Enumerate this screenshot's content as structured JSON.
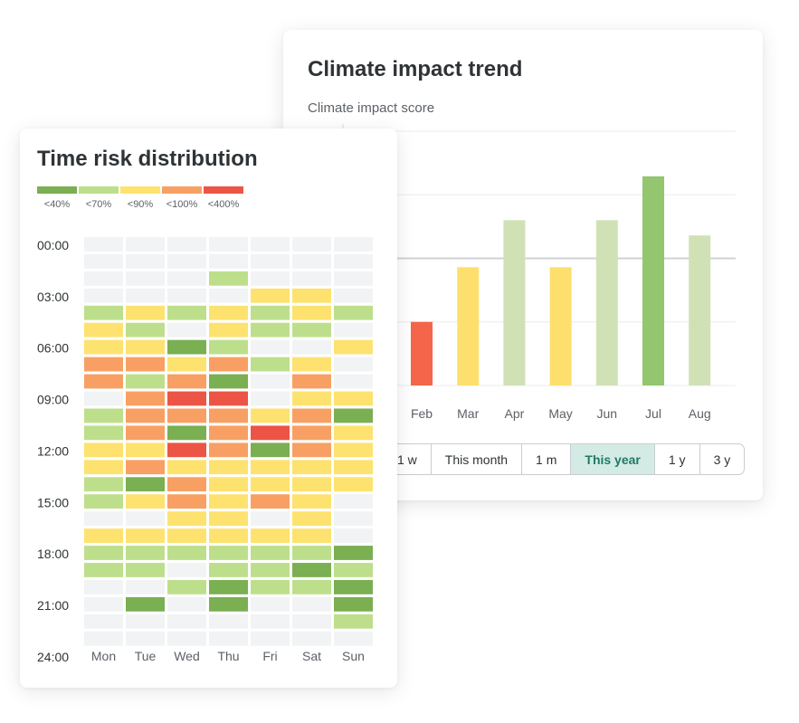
{
  "trend_card": {
    "title": "Climate impact trend",
    "score_label": "Climate impact score",
    "range_tabs": [
      {
        "label": "1 w",
        "active": false
      },
      {
        "label": "This month",
        "active": false
      },
      {
        "label": "1 m",
        "active": false
      },
      {
        "label": "This year",
        "active": true
      },
      {
        "label": "1 y",
        "active": false
      },
      {
        "label": "3 y",
        "active": false
      }
    ]
  },
  "risk_card": {
    "title": "Time risk distribution",
    "legend": [
      {
        "label": "<40%",
        "color": "#7aaf52"
      },
      {
        "label": "<70%",
        "color": "#bddf8c"
      },
      {
        "label": "<90%",
        "color": "#fde26f"
      },
      {
        "label": "<100%",
        "color": "#f8a063"
      },
      {
        "label": "<400%",
        "color": "#ec5446"
      }
    ]
  },
  "chart_data": [
    {
      "type": "bar",
      "title": "Climate impact trend",
      "ylabel": "Climate impact score",
      "categories": [
        "Feb",
        "Mar",
        "Apr",
        "May",
        "Jun",
        "Jul",
        "Aug"
      ],
      "values": [
        1.0,
        1.86,
        2.6,
        1.86,
        2.6,
        3.29,
        2.36
      ],
      "colors": [
        "#f4654a",
        "#fddf6d",
        "#d1e1b6",
        "#fddf6d",
        "#d1e1b6",
        "#94c56f",
        "#d1e1b6"
      ],
      "ylim": [
        0,
        4
      ],
      "reference_line": 2,
      "grid": true
    },
    {
      "type": "heatmap",
      "title": "Time risk distribution",
      "x_categories": [
        "Mon",
        "Tue",
        "Wed",
        "Thu",
        "Fri",
        "Sat",
        "Sun"
      ],
      "y_tick_labels": [
        "00:00",
        "03:00",
        "06:00",
        "09:00",
        "12:00",
        "15:00",
        "18:00",
        "21:00",
        "24:00"
      ],
      "y_rows": 24,
      "levels": [
        "none",
        "<40%",
        "<70%",
        "<90%",
        "<100%",
        "<400%"
      ],
      "level_colors": [
        "#f1f3f4",
        "#7aaf52",
        "#bddf8c",
        "#fde26f",
        "#f8a063",
        "#ec5446"
      ],
      "values": [
        [
          0,
          0,
          0,
          0,
          0,
          0,
          0
        ],
        [
          0,
          0,
          0,
          0,
          0,
          0,
          0
        ],
        [
          0,
          0,
          0,
          2,
          0,
          0,
          0
        ],
        [
          0,
          0,
          0,
          0,
          3,
          3,
          0
        ],
        [
          2,
          3,
          2,
          3,
          2,
          3,
          2
        ],
        [
          3,
          2,
          0,
          3,
          2,
          2,
          0
        ],
        [
          3,
          3,
          1,
          2,
          0,
          0,
          3
        ],
        [
          4,
          4,
          3,
          4,
          2,
          3,
          0
        ],
        [
          4,
          2,
          4,
          1,
          0,
          4,
          0
        ],
        [
          0,
          4,
          5,
          5,
          0,
          3,
          3
        ],
        [
          2,
          4,
          4,
          4,
          3,
          4,
          1
        ],
        [
          2,
          4,
          1,
          4,
          5,
          4,
          3
        ],
        [
          3,
          3,
          5,
          4,
          1,
          4,
          3
        ],
        [
          3,
          4,
          3,
          3,
          3,
          3,
          3
        ],
        [
          2,
          1,
          4,
          3,
          3,
          3,
          3
        ],
        [
          2,
          3,
          4,
          3,
          4,
          3,
          0
        ],
        [
          0,
          0,
          3,
          3,
          0,
          3,
          0
        ],
        [
          3,
          3,
          3,
          3,
          3,
          3,
          0
        ],
        [
          2,
          2,
          2,
          2,
          2,
          2,
          1
        ],
        [
          2,
          2,
          0,
          2,
          2,
          1,
          2
        ],
        [
          0,
          0,
          2,
          1,
          2,
          2,
          1
        ],
        [
          0,
          1,
          0,
          1,
          0,
          0,
          1
        ],
        [
          0,
          0,
          0,
          0,
          0,
          0,
          2
        ],
        [
          0,
          0,
          0,
          0,
          0,
          0,
          0
        ]
      ]
    }
  ]
}
